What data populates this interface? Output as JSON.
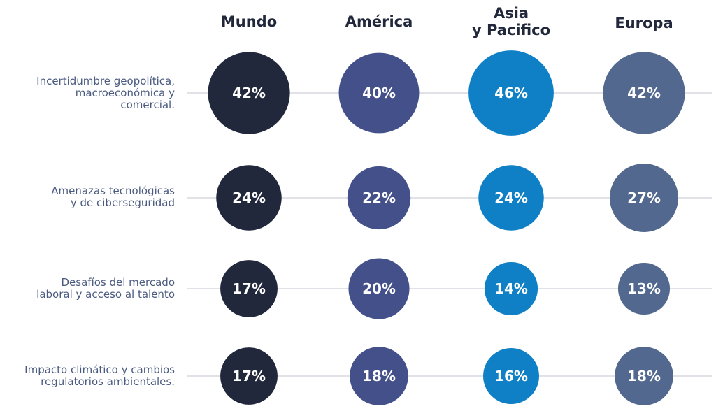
{
  "chart_data": {
    "type": "bubble-matrix",
    "columns": [
      "Mundo",
      "América",
      "Asia\ny Pacifico",
      "Europa"
    ],
    "rows": [
      "Incertidumbre geopolítica,\nmacroeconómica y\ncomercial.",
      "Amenazas tecnológicas\ny de ciberseguridad",
      "Desafíos del mercado\nlaboral y acceso al talento",
      "Impacto climático y cambios\nregulatorios ambientales."
    ],
    "values": [
      [
        42,
        40,
        46,
        42
      ],
      [
        24,
        22,
        24,
        27
      ],
      [
        17,
        20,
        14,
        13
      ],
      [
        17,
        18,
        16,
        18
      ]
    ],
    "unit": "%",
    "column_colors": [
      "#22283c",
      "#43508a",
      "#0f80c6",
      "#52688e"
    ]
  }
}
